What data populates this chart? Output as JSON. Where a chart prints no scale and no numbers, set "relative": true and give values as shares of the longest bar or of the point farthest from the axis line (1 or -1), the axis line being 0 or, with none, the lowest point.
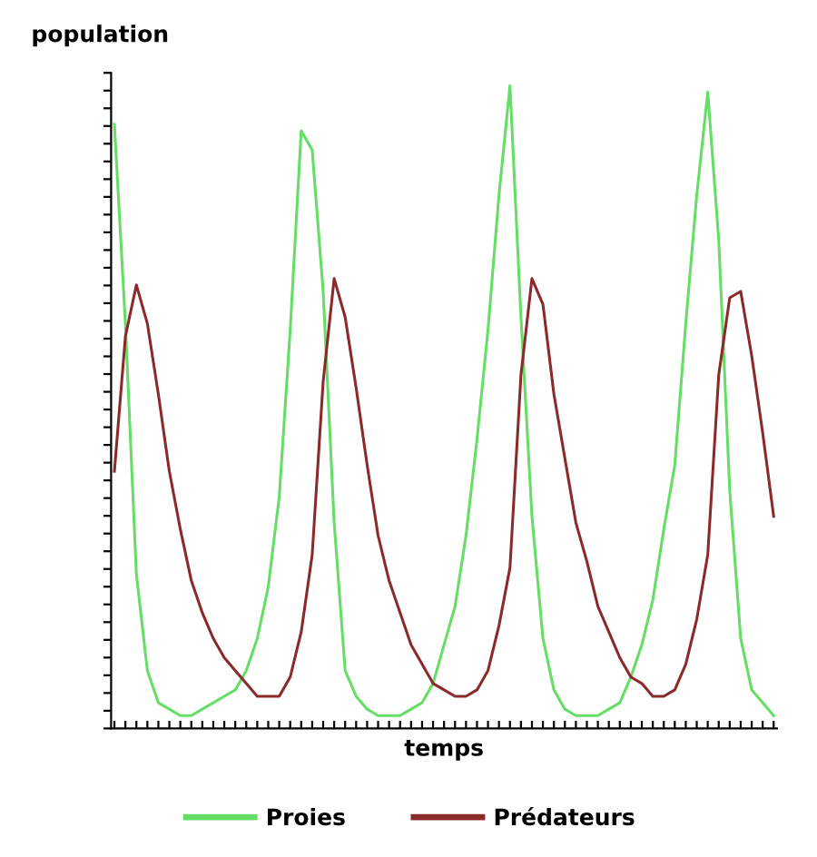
{
  "chart_data": {
    "type": "line",
    "relative": true,
    "xlabel": "temps",
    "ylabel": "population",
    "tick_labels": false,
    "legend": "bottom",
    "grid": false,
    "marker": "none",
    "line_style": "solid",
    "categories": [
      null,
      null,
      null,
      null,
      null,
      null,
      null,
      null,
      null,
      null,
      null,
      null,
      null,
      null,
      null,
      null,
      null,
      null,
      null,
      null,
      null,
      null,
      null,
      null,
      null,
      null,
      null,
      null,
      null,
      null,
      null,
      null,
      null,
      null,
      null,
      null,
      null,
      null,
      null,
      null,
      null,
      null,
      null,
      null,
      null,
      null,
      null,
      null,
      null,
      null,
      null,
      null,
      null,
      null,
      null,
      null,
      null,
      null,
      null,
      null,
      null
    ],
    "series": [
      {
        "name": "Proies",
        "color": "#66dd66",
        "values": [
          0.94,
          0.63,
          0.24,
          0.09,
          0.04,
          0.03,
          0.02,
          0.02,
          0.03,
          0.04,
          0.05,
          0.06,
          0.09,
          0.14,
          0.22,
          0.36,
          0.62,
          0.93,
          0.9,
          0.68,
          0.32,
          0.09,
          0.05,
          0.03,
          0.02,
          0.02,
          0.02,
          0.03,
          0.04,
          0.07,
          0.13,
          0.19,
          0.3,
          0.45,
          0.62,
          0.83,
          1.0,
          0.64,
          0.33,
          0.14,
          0.06,
          0.03,
          0.02,
          0.02,
          0.02,
          0.03,
          0.04,
          0.08,
          0.13,
          0.2,
          0.31,
          0.41,
          0.63,
          0.83,
          0.99,
          0.76,
          0.37,
          0.14,
          0.06,
          0.04,
          0.02
        ]
      },
      {
        "name": "Prédateurs",
        "color": "#8b2a2a",
        "values": [
          0.4,
          0.61,
          0.69,
          0.63,
          0.52,
          0.4,
          0.31,
          0.23,
          0.18,
          0.14,
          0.11,
          0.09,
          0.07,
          0.05,
          0.05,
          0.05,
          0.08,
          0.15,
          0.27,
          0.54,
          0.7,
          0.64,
          0.53,
          0.41,
          0.3,
          0.23,
          0.18,
          0.13,
          0.1,
          0.07,
          0.06,
          0.05,
          0.05,
          0.06,
          0.09,
          0.16,
          0.25,
          0.55,
          0.7,
          0.66,
          0.52,
          0.42,
          0.32,
          0.26,
          0.19,
          0.15,
          0.11,
          0.08,
          0.07,
          0.05,
          0.05,
          0.06,
          0.1,
          0.17,
          0.27,
          0.55,
          0.67,
          0.68,
          0.58,
          0.46,
          0.33
        ]
      }
    ]
  }
}
